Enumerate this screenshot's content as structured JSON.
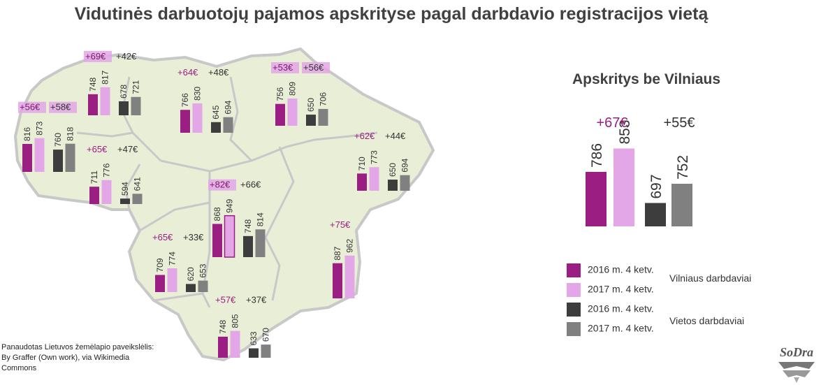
{
  "title": "Vidutinės darbuotojų pajamos apskrityse pagal darbdavio registracijos vietą",
  "credit": [
    "Panaudotas Lietuvos žemėlapio paveikslėlis:",
    "By Graffer (Own work), via Wikimedia",
    "Commons"
  ],
  "colors": {
    "v2016": "#9b1f82",
    "v2017": "#e3a6e6",
    "l2016": "#3d3d3d",
    "l2017": "#808080",
    "map_fill": "#e9eed7",
    "map_border": "#c8c8c8",
    "highlight": "#e3a6e6"
  },
  "legend": {
    "items": [
      "2016 m. 4 ketv.",
      "2017 m. 4 ketv.",
      "2016 m. 4 ketv.",
      "2017 m. 4 ketv."
    ],
    "groups": [
      "Vilniaus darbdaviai",
      "Vietos darbdaviai"
    ]
  },
  "logo_text": "SoDra",
  "chart_data": [
    {
      "type": "bar",
      "title": "Apskritys be Vilniaus",
      "series": [
        "2016 m. 4 ketv.",
        "2017 m. 4 ketv.",
        "2016 m. 4 ketv.",
        "2017 m. 4 ketv."
      ],
      "values": [
        786,
        853,
        697,
        752
      ],
      "changes": [
        "+67€",
        "+55€"
      ]
    },
    {
      "type": "bar",
      "regions": [
        {
          "values": [
            748,
            817,
            678,
            721
          ],
          "changes": [
            "+69€",
            "+42€"
          ]
        },
        {
          "values": [
            766,
            830,
            645,
            694
          ],
          "changes": [
            "+64€",
            "+48€"
          ]
        },
        {
          "values": [
            756,
            809,
            650,
            706
          ],
          "changes": [
            "+53€",
            "+56€"
          ]
        },
        {
          "values": [
            816,
            873,
            760,
            818
          ],
          "changes": [
            "+56€",
            "+58€"
          ]
        },
        {
          "values": [
            711,
            776,
            594,
            641
          ],
          "changes": [
            "+65€",
            "+47€"
          ]
        },
        {
          "values": [
            710,
            773,
            650,
            694
          ],
          "changes": [
            "+62€",
            "+44€"
          ]
        },
        {
          "values": [
            868,
            949,
            748,
            814
          ],
          "changes": [
            "+82€",
            "+66€"
          ]
        },
        {
          "values": [
            709,
            774,
            620,
            653
          ],
          "changes": [
            "+65€",
            "+33€"
          ]
        },
        {
          "values": [
            887,
            962
          ],
          "changes": [
            "+75€"
          ]
        },
        {
          "values": [
            748,
            805,
            633,
            670
          ],
          "changes": [
            "+57€",
            "+37€"
          ]
        }
      ]
    }
  ]
}
